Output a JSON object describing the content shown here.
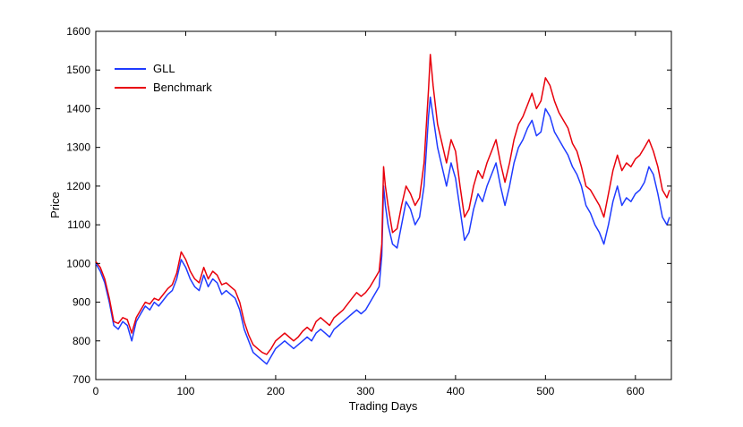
{
  "chart_data": {
    "type": "line",
    "title": "",
    "xlabel": "Trading Days",
    "ylabel": "Price",
    "xlim": [
      0,
      640
    ],
    "ylim": [
      700,
      1600
    ],
    "xticks": [
      0,
      100,
      200,
      300,
      400,
      500,
      600
    ],
    "yticks": [
      700,
      800,
      900,
      1000,
      1100,
      1200,
      1300,
      1400,
      1500,
      1600
    ],
    "grid": false,
    "legend": "top-left",
    "series": [
      {
        "name": "GLL",
        "color": "#1f3bff",
        "x": [
          0,
          5,
          10,
          15,
          20,
          25,
          30,
          35,
          40,
          45,
          50,
          55,
          60,
          65,
          70,
          75,
          80,
          85,
          90,
          95,
          100,
          105,
          110,
          115,
          120,
          125,
          130,
          135,
          140,
          145,
          150,
          155,
          160,
          165,
          170,
          175,
          180,
          185,
          190,
          195,
          200,
          205,
          210,
          215,
          220,
          225,
          230,
          235,
          240,
          245,
          250,
          255,
          260,
          265,
          270,
          275,
          280,
          285,
          290,
          295,
          300,
          305,
          310,
          315,
          318,
          320,
          322,
          325,
          330,
          335,
          340,
          345,
          350,
          355,
          360,
          365,
          370,
          372,
          375,
          380,
          385,
          390,
          395,
          400,
          405,
          410,
          415,
          420,
          425,
          430,
          435,
          440,
          445,
          450,
          455,
          460,
          465,
          470,
          475,
          480,
          485,
          490,
          495,
          500,
          505,
          510,
          515,
          520,
          525,
          530,
          535,
          540,
          545,
          550,
          555,
          560,
          565,
          570,
          575,
          580,
          585,
          590,
          595,
          600,
          605,
          610,
          615,
          620,
          625,
          630,
          635,
          638
        ],
        "y": [
          1000,
          980,
          950,
          900,
          840,
          830,
          850,
          840,
          800,
          850,
          870,
          890,
          880,
          900,
          890,
          905,
          920,
          930,
          960,
          1010,
          990,
          960,
          940,
          930,
          970,
          940,
          960,
          950,
          920,
          930,
          920,
          910,
          880,
          830,
          800,
          770,
          760,
          750,
          740,
          760,
          780,
          790,
          800,
          790,
          780,
          790,
          800,
          810,
          800,
          820,
          830,
          820,
          810,
          830,
          840,
          850,
          860,
          870,
          880,
          870,
          880,
          900,
          920,
          940,
          1020,
          1200,
          1150,
          1100,
          1050,
          1040,
          1100,
          1160,
          1140,
          1100,
          1120,
          1200,
          1380,
          1430,
          1380,
          1300,
          1250,
          1200,
          1260,
          1220,
          1140,
          1060,
          1080,
          1140,
          1180,
          1160,
          1200,
          1230,
          1260,
          1200,
          1150,
          1200,
          1260,
          1300,
          1320,
          1350,
          1370,
          1330,
          1340,
          1400,
          1380,
          1340,
          1320,
          1300,
          1280,
          1250,
          1230,
          1200,
          1150,
          1130,
          1100,
          1080,
          1050,
          1100,
          1160,
          1200,
          1150,
          1170,
          1160,
          1180,
          1190,
          1210,
          1250,
          1230,
          1180,
          1120,
          1100,
          1120
        ]
      },
      {
        "name": "Benchmark",
        "color": "#e8000b",
        "x": [
          0,
          5,
          10,
          15,
          20,
          25,
          30,
          35,
          40,
          45,
          50,
          55,
          60,
          65,
          70,
          75,
          80,
          85,
          90,
          95,
          100,
          105,
          110,
          115,
          120,
          125,
          130,
          135,
          140,
          145,
          150,
          155,
          160,
          165,
          170,
          175,
          180,
          185,
          190,
          195,
          200,
          205,
          210,
          215,
          220,
          225,
          230,
          235,
          240,
          245,
          250,
          255,
          260,
          265,
          270,
          275,
          280,
          285,
          290,
          295,
          300,
          305,
          310,
          315,
          318,
          320,
          322,
          325,
          330,
          335,
          340,
          345,
          350,
          355,
          360,
          365,
          370,
          372,
          375,
          380,
          385,
          390,
          395,
          400,
          405,
          410,
          415,
          420,
          425,
          430,
          435,
          440,
          445,
          450,
          455,
          460,
          465,
          470,
          475,
          480,
          485,
          490,
          495,
          500,
          505,
          510,
          515,
          520,
          525,
          530,
          535,
          540,
          545,
          550,
          555,
          560,
          565,
          570,
          575,
          580,
          585,
          590,
          595,
          600,
          605,
          610,
          615,
          620,
          625,
          630,
          635,
          638
        ],
        "y": [
          1005,
          990,
          960,
          910,
          850,
          845,
          860,
          855,
          820,
          860,
          880,
          900,
          895,
          910,
          905,
          920,
          935,
          945,
          975,
          1030,
          1010,
          980,
          960,
          950,
          990,
          960,
          980,
          970,
          945,
          950,
          940,
          930,
          900,
          850,
          815,
          790,
          780,
          770,
          765,
          780,
          800,
          810,
          820,
          810,
          800,
          810,
          825,
          835,
          825,
          850,
          860,
          850,
          840,
          860,
          870,
          880,
          895,
          910,
          925,
          915,
          925,
          940,
          960,
          980,
          1050,
          1250,
          1200,
          1150,
          1080,
          1090,
          1150,
          1200,
          1180,
          1150,
          1170,
          1260,
          1450,
          1540,
          1460,
          1360,
          1310,
          1260,
          1320,
          1290,
          1200,
          1120,
          1140,
          1200,
          1240,
          1220,
          1260,
          1290,
          1320,
          1260,
          1210,
          1260,
          1320,
          1360,
          1380,
          1410,
          1440,
          1400,
          1420,
          1480,
          1460,
          1420,
          1390,
          1370,
          1350,
          1310,
          1290,
          1250,
          1200,
          1190,
          1170,
          1150,
          1120,
          1180,
          1240,
          1280,
          1240,
          1260,
          1250,
          1270,
          1280,
          1300,
          1320,
          1290,
          1250,
          1190,
          1170,
          1190
        ]
      }
    ]
  }
}
